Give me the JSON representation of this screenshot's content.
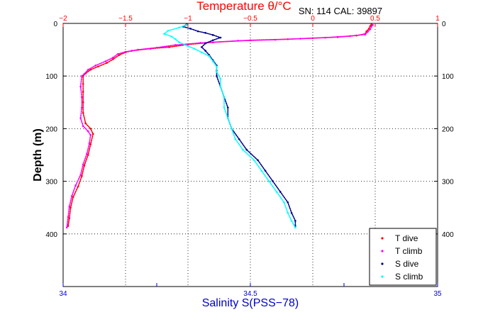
{
  "chart_data": {
    "type": "scatter",
    "title": "Temperature θ/°C",
    "subtitle": "SN: 114  CAL: 39897",
    "ylabel": "Depth (m)",
    "xlabel_bottom": "Salinity S(PSS−78)",
    "xlabel_top": "Temperature θ/°C",
    "ylim": [
      0,
      500
    ],
    "y_inverted": true,
    "xlim_temperature": [
      -2,
      1
    ],
    "xlim_salinity": [
      34,
      35
    ],
    "temperature_ticks": [
      "−2",
      "−1.5",
      "−1",
      "−0.5",
      "0",
      "0.5",
      "1"
    ],
    "temperature_tick_values": [
      -2,
      -1.5,
      -1,
      -0.5,
      0,
      0.5,
      1
    ],
    "salinity_ticks": [
      "34",
      "34.5",
      "35"
    ],
    "salinity_tick_values": [
      34,
      34.5,
      35
    ],
    "depth_ticks": [
      "0",
      "100",
      "200",
      "300",
      "400"
    ],
    "depth_tick_values": [
      0,
      100,
      200,
      300,
      400
    ],
    "grid": true,
    "legend_placement": "bottom-right",
    "series": [
      {
        "name": "T dive",
        "axis": "temperature",
        "color": "#ff0000",
        "points": [
          [
            0.47,
            2
          ],
          [
            0.46,
            5
          ],
          [
            0.45,
            10
          ],
          [
            0.43,
            15
          ],
          [
            0.42,
            20
          ],
          [
            0.35,
            23
          ],
          [
            0.2,
            26
          ],
          [
            0.0,
            28
          ],
          [
            -0.2,
            30
          ],
          [
            -0.5,
            32
          ],
          [
            -0.8,
            36
          ],
          [
            -1.0,
            40
          ],
          [
            -1.15,
            45
          ],
          [
            -1.3,
            48
          ],
          [
            -1.45,
            52
          ],
          [
            -1.5,
            55
          ],
          [
            -1.55,
            60
          ],
          [
            -1.6,
            68
          ],
          [
            -1.65,
            75
          ],
          [
            -1.72,
            82
          ],
          [
            -1.78,
            88
          ],
          [
            -1.82,
            95
          ],
          [
            -1.84,
            100
          ],
          [
            -1.84,
            115
          ],
          [
            -1.84,
            130
          ],
          [
            -1.84,
            150
          ],
          [
            -1.84,
            170
          ],
          [
            -1.82,
            190
          ],
          [
            -1.78,
            200
          ],
          [
            -1.76,
            210
          ],
          [
            -1.78,
            230
          ],
          [
            -1.8,
            250
          ],
          [
            -1.83,
            270
          ],
          [
            -1.85,
            290
          ],
          [
            -1.88,
            310
          ],
          [
            -1.92,
            330
          ],
          [
            -1.94,
            350
          ],
          [
            -1.95,
            370
          ],
          [
            -1.96,
            385
          ]
        ]
      },
      {
        "name": "T climb",
        "axis": "temperature",
        "color": "#ff00ff",
        "points": [
          [
            0.48,
            3
          ],
          [
            0.47,
            6
          ],
          [
            0.46,
            11
          ],
          [
            0.44,
            16
          ],
          [
            0.42,
            21
          ],
          [
            0.3,
            24
          ],
          [
            0.1,
            27
          ],
          [
            -0.1,
            29
          ],
          [
            -0.3,
            31
          ],
          [
            -0.6,
            33
          ],
          [
            -0.9,
            37
          ],
          [
            -1.1,
            41
          ],
          [
            -1.25,
            46
          ],
          [
            -1.4,
            50
          ],
          [
            -1.5,
            54
          ],
          [
            -1.56,
            58
          ],
          [
            -1.6,
            65
          ],
          [
            -1.66,
            72
          ],
          [
            -1.74,
            80
          ],
          [
            -1.8,
            88
          ],
          [
            -1.83,
            96
          ],
          [
            -1.85,
            100
          ],
          [
            -1.86,
            120
          ],
          [
            -1.85,
            140
          ],
          [
            -1.85,
            160
          ],
          [
            -1.86,
            180
          ],
          [
            -1.84,
            195
          ],
          [
            -1.8,
            205
          ],
          [
            -1.78,
            212
          ],
          [
            -1.79,
            228
          ],
          [
            -1.81,
            248
          ],
          [
            -1.84,
            268
          ],
          [
            -1.86,
            288
          ],
          [
            -1.9,
            308
          ],
          [
            -1.93,
            328
          ],
          [
            -1.95,
            348
          ],
          [
            -1.96,
            368
          ],
          [
            -1.97,
            388
          ]
        ]
      },
      {
        "name": "S dive",
        "axis": "salinity",
        "color": "#00008b",
        "points": [
          [
            34.33,
            2
          ],
          [
            34.32,
            6
          ],
          [
            34.34,
            10
          ],
          [
            34.36,
            15
          ],
          [
            34.38,
            18
          ],
          [
            34.4,
            22
          ],
          [
            34.42,
            27
          ],
          [
            34.4,
            32
          ],
          [
            34.38,
            38
          ],
          [
            34.37,
            45
          ],
          [
            34.38,
            52
          ],
          [
            34.39,
            60
          ],
          [
            34.4,
            70
          ],
          [
            34.41,
            80
          ],
          [
            34.41,
            90
          ],
          [
            34.41,
            100
          ],
          [
            34.42,
            120
          ],
          [
            34.43,
            140
          ],
          [
            34.44,
            160
          ],
          [
            34.44,
            180
          ],
          [
            34.45,
            200
          ],
          [
            34.47,
            220
          ],
          [
            34.49,
            240
          ],
          [
            34.52,
            260
          ],
          [
            34.54,
            280
          ],
          [
            34.56,
            300
          ],
          [
            34.58,
            320
          ],
          [
            34.6,
            340
          ],
          [
            34.61,
            360
          ],
          [
            34.62,
            375
          ],
          [
            34.62,
            385
          ]
        ]
      },
      {
        "name": "S climb",
        "axis": "salinity",
        "color": "#00ffff",
        "points": [
          [
            34.33,
            3
          ],
          [
            34.31,
            8
          ],
          [
            34.28,
            14
          ],
          [
            34.27,
            20
          ],
          [
            34.29,
            25
          ],
          [
            34.3,
            30
          ],
          [
            34.31,
            36
          ],
          [
            34.33,
            42
          ],
          [
            34.35,
            48
          ],
          [
            34.37,
            55
          ],
          [
            34.39,
            62
          ],
          [
            34.4,
            72
          ],
          [
            34.41,
            82
          ],
          [
            34.41,
            92
          ],
          [
            34.42,
            105
          ],
          [
            34.42,
            120
          ],
          [
            34.43,
            140
          ],
          [
            34.43,
            160
          ],
          [
            34.44,
            180
          ],
          [
            34.45,
            200
          ],
          [
            34.46,
            220
          ],
          [
            34.48,
            240
          ],
          [
            34.51,
            260
          ],
          [
            34.53,
            280
          ],
          [
            34.55,
            300
          ],
          [
            34.57,
            320
          ],
          [
            34.59,
            340
          ],
          [
            34.6,
            360
          ],
          [
            34.61,
            375
          ],
          [
            34.62,
            388
          ]
        ]
      }
    ]
  }
}
